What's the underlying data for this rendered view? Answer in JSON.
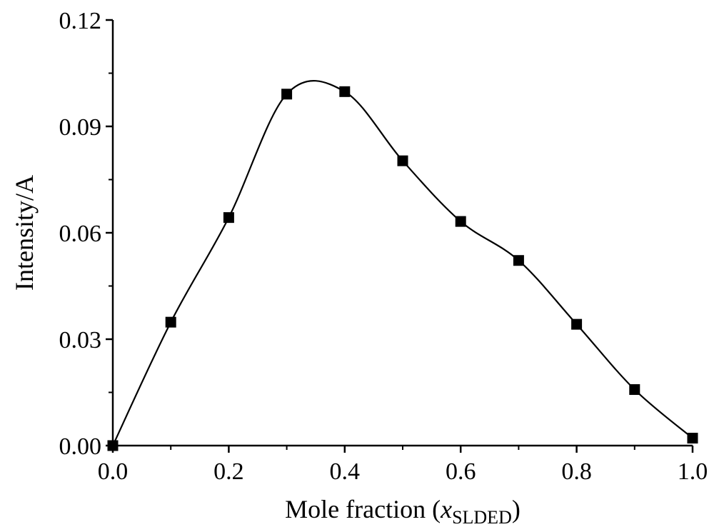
{
  "chart_data": {
    "type": "scatter",
    "title": "",
    "xlabel": {
      "prefix": "Mole fraction (",
      "variable": "x",
      "subscript": "SLDED",
      "suffix": ")"
    },
    "ylabel": "Intensity/A",
    "xlim": [
      0.0,
      1.0
    ],
    "ylim": [
      0.0,
      0.12
    ],
    "x_ticks": [
      "0.0",
      "0.2",
      "0.4",
      "0.6",
      "0.8",
      "1.0"
    ],
    "y_ticks": [
      "0.00",
      "0.03",
      "0.06",
      "0.09",
      "0.12"
    ],
    "grid": false,
    "legend": "none",
    "colors": {
      "marker": "#000000",
      "line": "#000000",
      "axis": "#000000"
    },
    "series": [
      {
        "marker": "square",
        "line": "smooth",
        "points": [
          {
            "x": 0.0,
            "y": 0.0
          },
          {
            "x": 0.1,
            "y": 0.0348
          },
          {
            "x": 0.2,
            "y": 0.0643
          },
          {
            "x": 0.3,
            "y": 0.0991
          },
          {
            "x": 0.4,
            "y": 0.0998
          },
          {
            "x": 0.5,
            "y": 0.0803
          },
          {
            "x": 0.6,
            "y": 0.0632
          },
          {
            "x": 0.7,
            "y": 0.0522
          },
          {
            "x": 0.8,
            "y": 0.0342
          },
          {
            "x": 0.9,
            "y": 0.0158
          },
          {
            "x": 1.0,
            "y": 0.0021
          }
        ]
      }
    ]
  }
}
